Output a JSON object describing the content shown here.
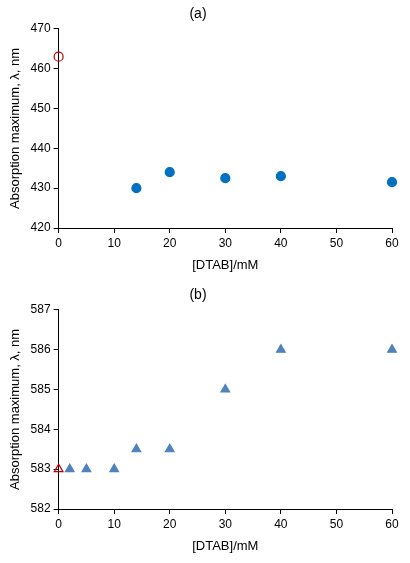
{
  "chart_data": [
    {
      "type": "scatter",
      "title": "(a)",
      "x_label": "[DTAB]/mM",
      "y_label": "Absorption maximum, λ, nm",
      "xlim": [
        0,
        60
      ],
      "xticks": [
        0,
        10,
        20,
        30,
        40,
        50,
        60
      ],
      "ylim": [
        420,
        470
      ],
      "yticks": [
        420,
        430,
        440,
        450,
        460,
        470
      ],
      "grid": false,
      "series": [
        {
          "color": "#c00000",
          "marker": "open_circle",
          "x": [
            0
          ],
          "values": [
            463
          ]
        },
        {
          "color": "#0070c0",
          "marker": "circle",
          "x": [
            14,
            20,
            30,
            40,
            60
          ],
          "values": [
            430,
            434,
            432.5,
            433,
            431.5
          ]
        }
      ]
    },
    {
      "type": "scatter",
      "title": "(b)",
      "x_label": "[DTAB]/mM",
      "y_label": "Absorption maximum, λ, nm",
      "xlim": [
        0,
        60
      ],
      "xticks": [
        0,
        10,
        20,
        30,
        40,
        50,
        60
      ],
      "ylim": [
        582,
        587
      ],
      "yticks": [
        582,
        583,
        584,
        585,
        586,
        587
      ],
      "grid": false,
      "series": [
        {
          "color": "#c00000",
          "marker": "open_triangle",
          "x": [
            0
          ],
          "values": [
            583
          ]
        },
        {
          "color": "#4f81bd",
          "marker": "triangle",
          "x": [
            2,
            5,
            10,
            14,
            20,
            30,
            40,
            60
          ],
          "values": [
            583,
            583,
            583,
            583.5,
            583.5,
            585,
            586,
            586
          ]
        }
      ]
    }
  ]
}
